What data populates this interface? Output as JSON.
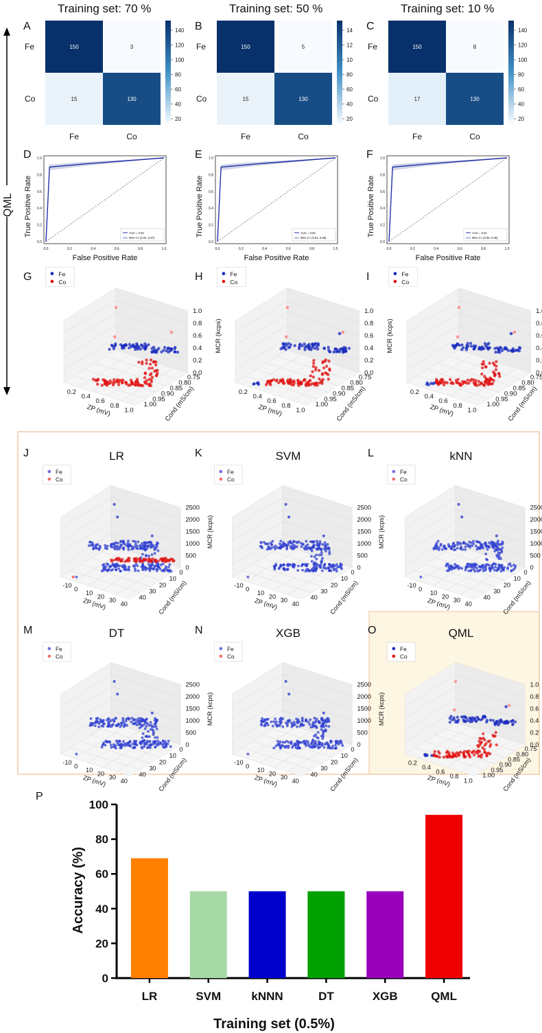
{
  "top": {
    "side_label": "QML",
    "columns": [
      {
        "title": "Training set: 70 %",
        "cm_letter": "A",
        "roc_letter": "D",
        "sc_letter": "G",
        "cm": {
          "values": [
            [
              150,
              3
            ],
            [
              15,
              130
            ]
          ]
        },
        "roc": {
          "auc": "AUC = 0.94",
          "ci": "95% CI: (0.91, 0.97)"
        }
      },
      {
        "title": "Training set: 50 %",
        "cm_letter": "B",
        "roc_letter": "E",
        "sc_letter": "H",
        "cm": {
          "values": [
            [
              150,
              5
            ],
            [
              15,
              130
            ]
          ]
        },
        "roc": {
          "auc": "AUC = 0.94",
          "ci": "95% CI: (0.91, 0.96)"
        }
      },
      {
        "title": "Training set: 10 %",
        "cm_letter": "C",
        "roc_letter": "F",
        "sc_letter": "I",
        "cm": {
          "values": [
            [
              150,
              8
            ],
            [
              17,
              130
            ]
          ]
        },
        "roc": {
          "auc": "AUC = 0.91",
          "ci": "95% CI: (0.88, 0.95)"
        }
      }
    ],
    "cm_labels": [
      "Fe",
      "Co"
    ],
    "colorbar_ticks": [
      140,
      120,
      100,
      80,
      60,
      40,
      20
    ],
    "colorbar_ticks_b": [
      "14",
      "12",
      "10",
      "80",
      "60",
      "40",
      "20"
    ],
    "roc_xlabel": "False Positive Rate",
    "roc_ylabel": "True Positive Rate",
    "roc_ticks": [
      "0.0",
      "0.2",
      "0.4",
      "0.6",
      "0.8",
      "1.0"
    ],
    "legend": [
      "Fe",
      "Co"
    ],
    "qml_3d": {
      "z_ticks": [
        "1.0",
        "0.8",
        "0.6",
        "0.4",
        "0.2",
        "0.0"
      ],
      "x_ticks": [
        "0.2",
        "0.4",
        "0.6",
        "0.8",
        "1.0"
      ],
      "y_ticks": [
        "1.00",
        "0.95",
        "0.90",
        "0.85",
        "0.80",
        "0.75"
      ],
      "y_ticks_i": [
        "1.00",
        "0.95",
        "0.90",
        "0.85",
        "0.80",
        "0.75"
      ],
      "xlabel": "ZP (mV)",
      "ylabel": "Cond (mS/cm)",
      "zlabel": "MCR (kcps)"
    }
  },
  "models": {
    "panels": [
      {
        "letter": "J",
        "name": "LR"
      },
      {
        "letter": "K",
        "name": "SVM"
      },
      {
        "letter": "L",
        "name": "kNN"
      },
      {
        "letter": "M",
        "name": "DT"
      },
      {
        "letter": "N",
        "name": "XGB"
      },
      {
        "letter": "O",
        "name": "QML"
      }
    ],
    "z_ticks": [
      "2500",
      "2000",
      "1500",
      "1000",
      "500",
      "0"
    ],
    "x_ticks": [
      "-10",
      "0",
      "10",
      "20",
      "30",
      "40"
    ],
    "y_ticks": [
      "40",
      "30",
      "20",
      "10",
      "0"
    ],
    "xlabel": "ZP (mV)",
    "ylabel": "Cond (mS/cm)",
    "zlabel": "MCR (kcps)",
    "qml_z_ticks": [
      "1.0",
      "0.8",
      "0.6",
      "0.4",
      "0.2",
      "0.0"
    ],
    "qml_x_ticks": [
      "0.2",
      "0.4",
      "0.6",
      "0.8",
      "1.0"
    ],
    "qml_y_ticks": [
      "1.00",
      "0.95",
      "0.90",
      "0.85",
      "0.80",
      "0.75"
    ]
  },
  "chart_data": [
    {
      "type": "bar",
      "panel": "P",
      "title": "",
      "categories": [
        "LR",
        "SVM",
        "kNNN",
        "DT",
        "XGB",
        "QML"
      ],
      "values": [
        69,
        50,
        50,
        50,
        50,
        94
      ],
      "colors": [
        "#ff7f00",
        "#a6d9a6",
        "#0000cc",
        "#00a000",
        "#9900bb",
        "#ee0000"
      ],
      "xlabel": "Training set (0.5%)",
      "ylabel": "Accuracy (%)",
      "ylim": [
        0,
        100
      ],
      "yticks": [
        "0",
        "20",
        "40",
        "60",
        "80",
        "100"
      ]
    }
  ]
}
